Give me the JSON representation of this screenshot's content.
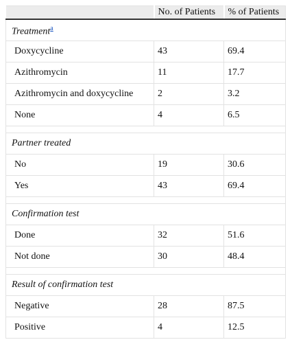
{
  "table": {
    "columns": [
      "No. of Patients",
      "% of Patients"
    ],
    "sections": [
      {
        "title": "Treatment",
        "note": "a",
        "rows": [
          [
            "Doxycycline",
            43,
            69.4
          ],
          [
            "Azithromycin",
            11,
            17.7
          ],
          [
            "Azithromycin and doxycycline",
            2,
            3.2
          ],
          [
            "None",
            4,
            6.5
          ]
        ]
      },
      {
        "title": "Partner treated",
        "rows": [
          [
            "No",
            19,
            30.6
          ],
          [
            "Yes",
            43,
            69.4
          ]
        ]
      },
      {
        "title": "Confirmation test",
        "rows": [
          [
            "Done",
            32,
            51.6
          ],
          [
            "Not done",
            30,
            48.4
          ]
        ]
      },
      {
        "title": "Result of confirmation test",
        "rows": [
          [
            "Negative",
            28,
            87.5
          ],
          [
            "Positive",
            4,
            12.5
          ]
        ]
      }
    ]
  }
}
